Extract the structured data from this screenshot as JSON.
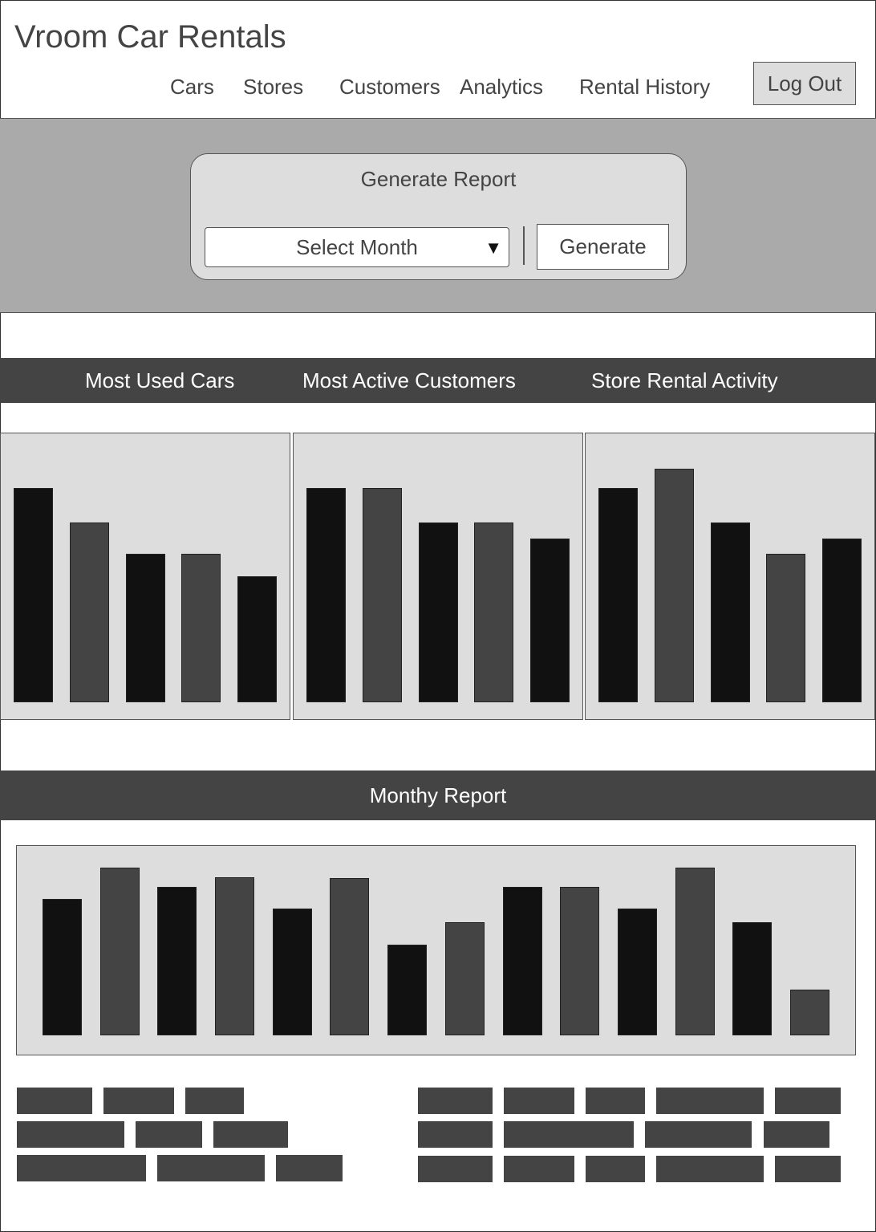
{
  "app": {
    "title": "Vroom Car Rentals"
  },
  "nav": {
    "items": [
      {
        "label": "Cars"
      },
      {
        "label": "Stores"
      },
      {
        "label": "Customers"
      },
      {
        "label": "Analytics"
      },
      {
        "label": "Rental History"
      }
    ],
    "logout_label": "Log Out"
  },
  "report": {
    "title": "Generate Report",
    "select_placeholder": "Select Month",
    "generate_label": "Generate"
  },
  "tabs": [
    {
      "label": "Most Used Cars"
    },
    {
      "label": "Most Active Customers"
    },
    {
      "label": "Store Rental Activity"
    }
  ],
  "monthly": {
    "title": "Monthy Report"
  },
  "colors": {
    "bar_dark": "#111111",
    "bar_mid": "#444444",
    "panel_bg": "#dddddd",
    "band_bg": "#aaaaaa",
    "header_bg": "#444444"
  },
  "chart_data": [
    {
      "type": "bar",
      "values": [
        267,
        224,
        185,
        185,
        157
      ],
      "ylim": [
        0,
        310
      ]
    },
    {
      "type": "bar",
      "values": [
        267,
        267,
        224,
        224,
        204
      ],
      "ylim": [
        0,
        310
      ]
    },
    {
      "type": "bar",
      "values": [
        267,
        291,
        224,
        185,
        204
      ],
      "ylim": [
        0,
        310
      ]
    },
    {
      "type": "bar",
      "values": [
        170,
        209,
        185,
        197,
        158,
        196,
        113,
        141,
        185,
        185,
        158,
        209,
        141,
        57
      ],
      "ylim": [
        0,
        230
      ]
    }
  ]
}
